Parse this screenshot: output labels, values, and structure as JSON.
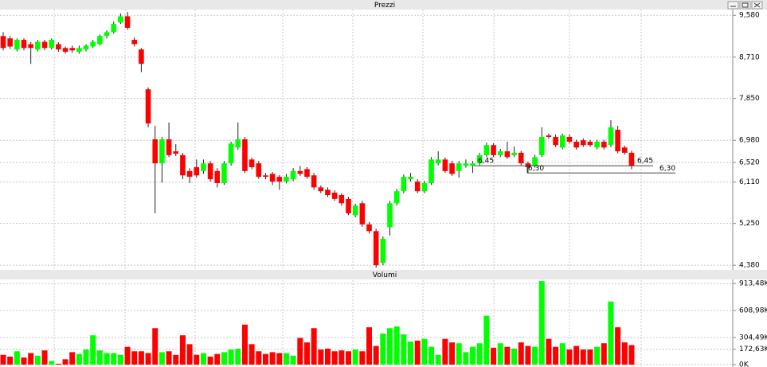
{
  "chart_data": [
    {
      "type": "candlestick",
      "title": "Prezzi",
      "ohlc": [
        [
          9.15,
          9.23,
          8.85,
          8.9
        ],
        [
          9.1,
          9.15,
          8.88,
          8.93
        ],
        [
          8.87,
          9.1,
          8.83,
          9.07
        ],
        [
          9.07,
          9.1,
          8.85,
          8.9
        ],
        [
          8.98,
          9.02,
          8.57,
          8.9
        ],
        [
          8.87,
          9.07,
          8.83,
          9.03
        ],
        [
          9.03,
          9.07,
          8.85,
          8.9
        ],
        [
          8.9,
          9.1,
          8.87,
          9.07
        ],
        [
          8.98,
          9.02,
          8.82,
          8.87
        ],
        [
          8.9,
          8.93,
          8.78,
          8.82
        ],
        [
          8.9,
          8.95,
          8.8,
          8.85
        ],
        [
          8.82,
          8.95,
          8.78,
          8.9
        ],
        [
          8.87,
          8.98,
          8.83,
          8.95
        ],
        [
          8.93,
          9.07,
          8.9,
          9.03
        ],
        [
          8.98,
          9.18,
          8.95,
          9.15
        ],
        [
          9.15,
          9.27,
          9.1,
          9.23
        ],
        [
          9.23,
          9.45,
          9.2,
          9.4
        ],
        [
          9.43,
          9.62,
          9.4,
          9.56
        ],
        [
          9.56,
          9.65,
          9.28,
          9.32
        ],
        [
          9.07,
          9.12,
          8.93,
          8.98
        ],
        [
          8.87,
          8.9,
          8.4,
          8.57
        ],
        [
          8.04,
          8.08,
          7.25,
          7.33
        ],
        [
          7.0,
          7.28,
          5.46,
          6.5
        ],
        [
          6.5,
          7.05,
          6.1,
          7.0
        ],
        [
          7.0,
          7.35,
          6.63,
          6.67
        ],
        [
          6.75,
          6.9,
          6.65,
          6.7
        ],
        [
          6.67,
          6.72,
          6.17,
          6.25
        ],
        [
          6.34,
          6.4,
          6.09,
          6.22
        ],
        [
          6.42,
          6.58,
          6.2,
          6.25
        ],
        [
          6.34,
          6.58,
          6.28,
          6.5
        ],
        [
          6.5,
          6.55,
          6.12,
          6.17
        ],
        [
          6.34,
          6.4,
          6.0,
          6.09
        ],
        [
          6.09,
          6.55,
          6.05,
          6.5
        ],
        [
          6.5,
          6.95,
          6.45,
          6.91
        ],
        [
          6.83,
          7.35,
          6.78,
          7.0
        ],
        [
          7.0,
          7.05,
          6.3,
          6.34
        ],
        [
          6.58,
          6.62,
          6.38,
          6.42
        ],
        [
          6.5,
          6.55,
          6.18,
          6.22
        ],
        [
          6.25,
          6.3,
          6.17,
          6.22
        ],
        [
          6.28,
          6.32,
          6.05,
          6.12
        ],
        [
          6.22,
          6.26,
          5.95,
          6.12
        ],
        [
          6.12,
          6.28,
          6.08,
          6.22
        ],
        [
          6.17,
          6.4,
          6.13,
          6.34
        ],
        [
          6.34,
          6.45,
          6.24,
          6.28
        ],
        [
          6.38,
          6.42,
          6.18,
          6.22
        ],
        [
          6.25,
          6.3,
          5.95,
          6.0
        ],
        [
          6.0,
          6.04,
          5.88,
          5.92
        ],
        [
          5.95,
          6.0,
          5.8,
          5.84
        ],
        [
          5.89,
          5.94,
          5.72,
          5.76
        ],
        [
          5.84,
          5.88,
          5.62,
          5.67
        ],
        [
          5.76,
          5.8,
          5.42,
          5.46
        ],
        [
          5.42,
          5.66,
          5.38,
          5.62
        ],
        [
          5.67,
          5.72,
          5.18,
          5.23
        ],
        [
          5.23,
          5.28,
          5.04,
          5.09
        ],
        [
          5.09,
          5.14,
          4.33,
          4.38
        ],
        [
          4.43,
          4.98,
          4.38,
          4.93
        ],
        [
          5.17,
          5.72,
          5.0,
          5.67
        ],
        [
          5.67,
          5.97,
          5.62,
          5.92
        ],
        [
          5.92,
          6.27,
          5.88,
          6.22
        ],
        [
          6.17,
          6.3,
          6.12,
          6.22
        ],
        [
          6.12,
          6.17,
          5.88,
          5.92
        ],
        [
          5.92,
          6.14,
          5.88,
          6.09
        ],
        [
          6.09,
          6.63,
          6.05,
          6.58
        ],
        [
          6.5,
          6.75,
          6.46,
          6.58
        ],
        [
          6.58,
          6.62,
          6.3,
          6.34
        ],
        [
          6.5,
          6.55,
          6.24,
          6.28
        ],
        [
          6.34,
          6.55,
          6.2,
          6.5
        ],
        [
          6.45,
          6.58,
          6.41,
          6.5
        ],
        [
          6.45,
          6.55,
          6.3,
          6.5
        ],
        [
          6.5,
          6.72,
          6.46,
          6.67
        ],
        [
          6.67,
          6.93,
          6.63,
          6.88
        ],
        [
          6.88,
          6.92,
          6.63,
          6.67
        ],
        [
          6.67,
          6.8,
          6.63,
          6.75
        ],
        [
          6.75,
          6.95,
          6.59,
          6.63
        ],
        [
          6.67,
          6.85,
          6.63,
          6.72
        ],
        [
          6.72,
          6.76,
          6.46,
          6.5
        ],
        [
          6.5,
          6.54,
          6.3,
          6.42
        ],
        [
          6.45,
          6.68,
          6.41,
          6.63
        ],
        [
          6.67,
          7.25,
          6.63,
          7.05
        ],
        [
          7.08,
          7.12,
          7.01,
          7.05
        ],
        [
          7.05,
          7.1,
          6.84,
          6.88
        ],
        [
          6.83,
          7.12,
          6.79,
          7.08
        ],
        [
          7.05,
          7.1,
          6.91,
          6.95
        ],
        [
          6.95,
          6.99,
          6.79,
          6.83
        ],
        [
          6.98,
          7.02,
          6.84,
          6.88
        ],
        [
          6.95,
          6.99,
          6.84,
          6.88
        ],
        [
          6.83,
          6.99,
          6.79,
          6.95
        ],
        [
          6.95,
          6.99,
          6.79,
          6.83
        ],
        [
          6.88,
          7.4,
          6.84,
          7.25
        ],
        [
          7.2,
          7.28,
          6.71,
          6.75
        ],
        [
          6.83,
          6.87,
          6.68,
          6.72
        ],
        [
          6.72,
          6.76,
          6.38,
          6.45
        ]
      ],
      "up_color": "#00ff00",
      "down_color": "#ff0000",
      "ylim": [
        4.3,
        9.7
      ],
      "yticks": [
        {
          "value": 9.58,
          "label": "9,580"
        },
        {
          "value": 8.71,
          "label": "8,710"
        },
        {
          "value": 7.85,
          "label": "7,850"
        },
        {
          "value": 6.98,
          "label": "6,980"
        },
        {
          "value": 6.52,
          "label": "6,520"
        },
        {
          "value": 6.11,
          "label": "6,110"
        },
        {
          "value": 5.25,
          "label": "5,250"
        },
        {
          "value": 4.38,
          "label": "4,380"
        }
      ],
      "grid": true,
      "annotations": [
        {
          "value": 6.45,
          "labels": [
            "6,45",
            "6,45"
          ]
        },
        {
          "value": 6.3,
          "labels": [
            "6,30",
            "6,30"
          ]
        }
      ]
    },
    {
      "type": "volume",
      "title": "Volumi",
      "values": [
        110000,
        90000,
        150000,
        80000,
        130000,
        100000,
        160000,
        40000,
        10000,
        60000,
        140000,
        120000,
        170000,
        330000,
        160000,
        130000,
        130000,
        110000,
        200000,
        150000,
        150000,
        130000,
        410000,
        140000,
        150000,
        110000,
        330000,
        230000,
        110000,
        130000,
        90000,
        120000,
        140000,
        170000,
        180000,
        450000,
        230000,
        150000,
        120000,
        140000,
        130000,
        130000,
        100000,
        300000,
        250000,
        410000,
        170000,
        180000,
        150000,
        160000,
        150000,
        170000,
        150000,
        420000,
        210000,
        350000,
        410000,
        430000,
        340000,
        260000,
        270000,
        290000,
        200000,
        110000,
        290000,
        250000,
        240000,
        140000,
        200000,
        240000,
        550000,
        190000,
        240000,
        200000,
        180000,
        250000,
        210000,
        200000,
        940000,
        290000,
        200000,
        240000,
        170000,
        210000,
        170000,
        170000,
        200000,
        240000,
        710000,
        420000,
        250000,
        220000
      ],
      "ylim": [
        0,
        950000
      ],
      "yticks": [
        {
          "value": 913480,
          "label": "913,48K"
        },
        {
          "value": 608980,
          "label": "608,98K"
        },
        {
          "value": 304490,
          "label": "304,49K"
        },
        {
          "value": 172630,
          "label": "172,63K"
        },
        {
          "value": 0,
          "label": "0K"
        }
      ],
      "grid": true
    }
  ]
}
